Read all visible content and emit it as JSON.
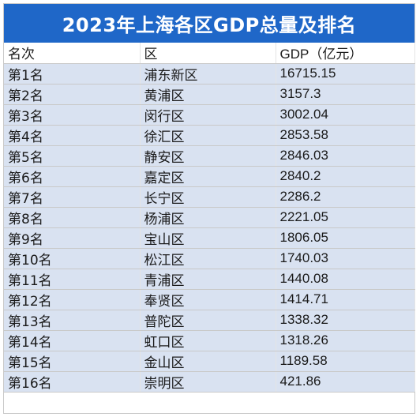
{
  "title": "2023年上海各区GDP总量及排名",
  "headers": {
    "rank": "名次",
    "district": "区",
    "gdp": "GDP（亿元）"
  },
  "rows": [
    {
      "rank": "第1名",
      "district": "浦东新区",
      "gdp": "16715.15"
    },
    {
      "rank": "第2名",
      "district": "黄浦区",
      "gdp": "3157.3"
    },
    {
      "rank": "第3名",
      "district": "闵行区",
      "gdp": "3002.04"
    },
    {
      "rank": "第4名",
      "district": "徐汇区",
      "gdp": "2853.58"
    },
    {
      "rank": "第5名",
      "district": "静安区",
      "gdp": "2846.03"
    },
    {
      "rank": "第6名",
      "district": "嘉定区",
      "gdp": "2840.2"
    },
    {
      "rank": "第7名",
      "district": "长宁区",
      "gdp": "2286.2"
    },
    {
      "rank": "第8名",
      "district": "杨浦区",
      "gdp": "2221.05"
    },
    {
      "rank": "第9名",
      "district": "宝山区",
      "gdp": "1806.05"
    },
    {
      "rank": "第10名",
      "district": "松江区",
      "gdp": "1740.03"
    },
    {
      "rank": "第11名",
      "district": "青浦区",
      "gdp": "1440.08"
    },
    {
      "rank": "第12名",
      "district": "奉贤区",
      "gdp": "1414.71"
    },
    {
      "rank": "第13名",
      "district": "普陀区",
      "gdp": "1338.32"
    },
    {
      "rank": "第14名",
      "district": "虹口区",
      "gdp": "1318.26"
    },
    {
      "rank": "第15名",
      "district": "金山区",
      "gdp": "1189.58"
    },
    {
      "rank": "第16名",
      "district": "崇明区",
      "gdp": "421.86"
    }
  ],
  "colors": {
    "title_background": "#1f67c8",
    "row_background": "#d9e2f1"
  }
}
